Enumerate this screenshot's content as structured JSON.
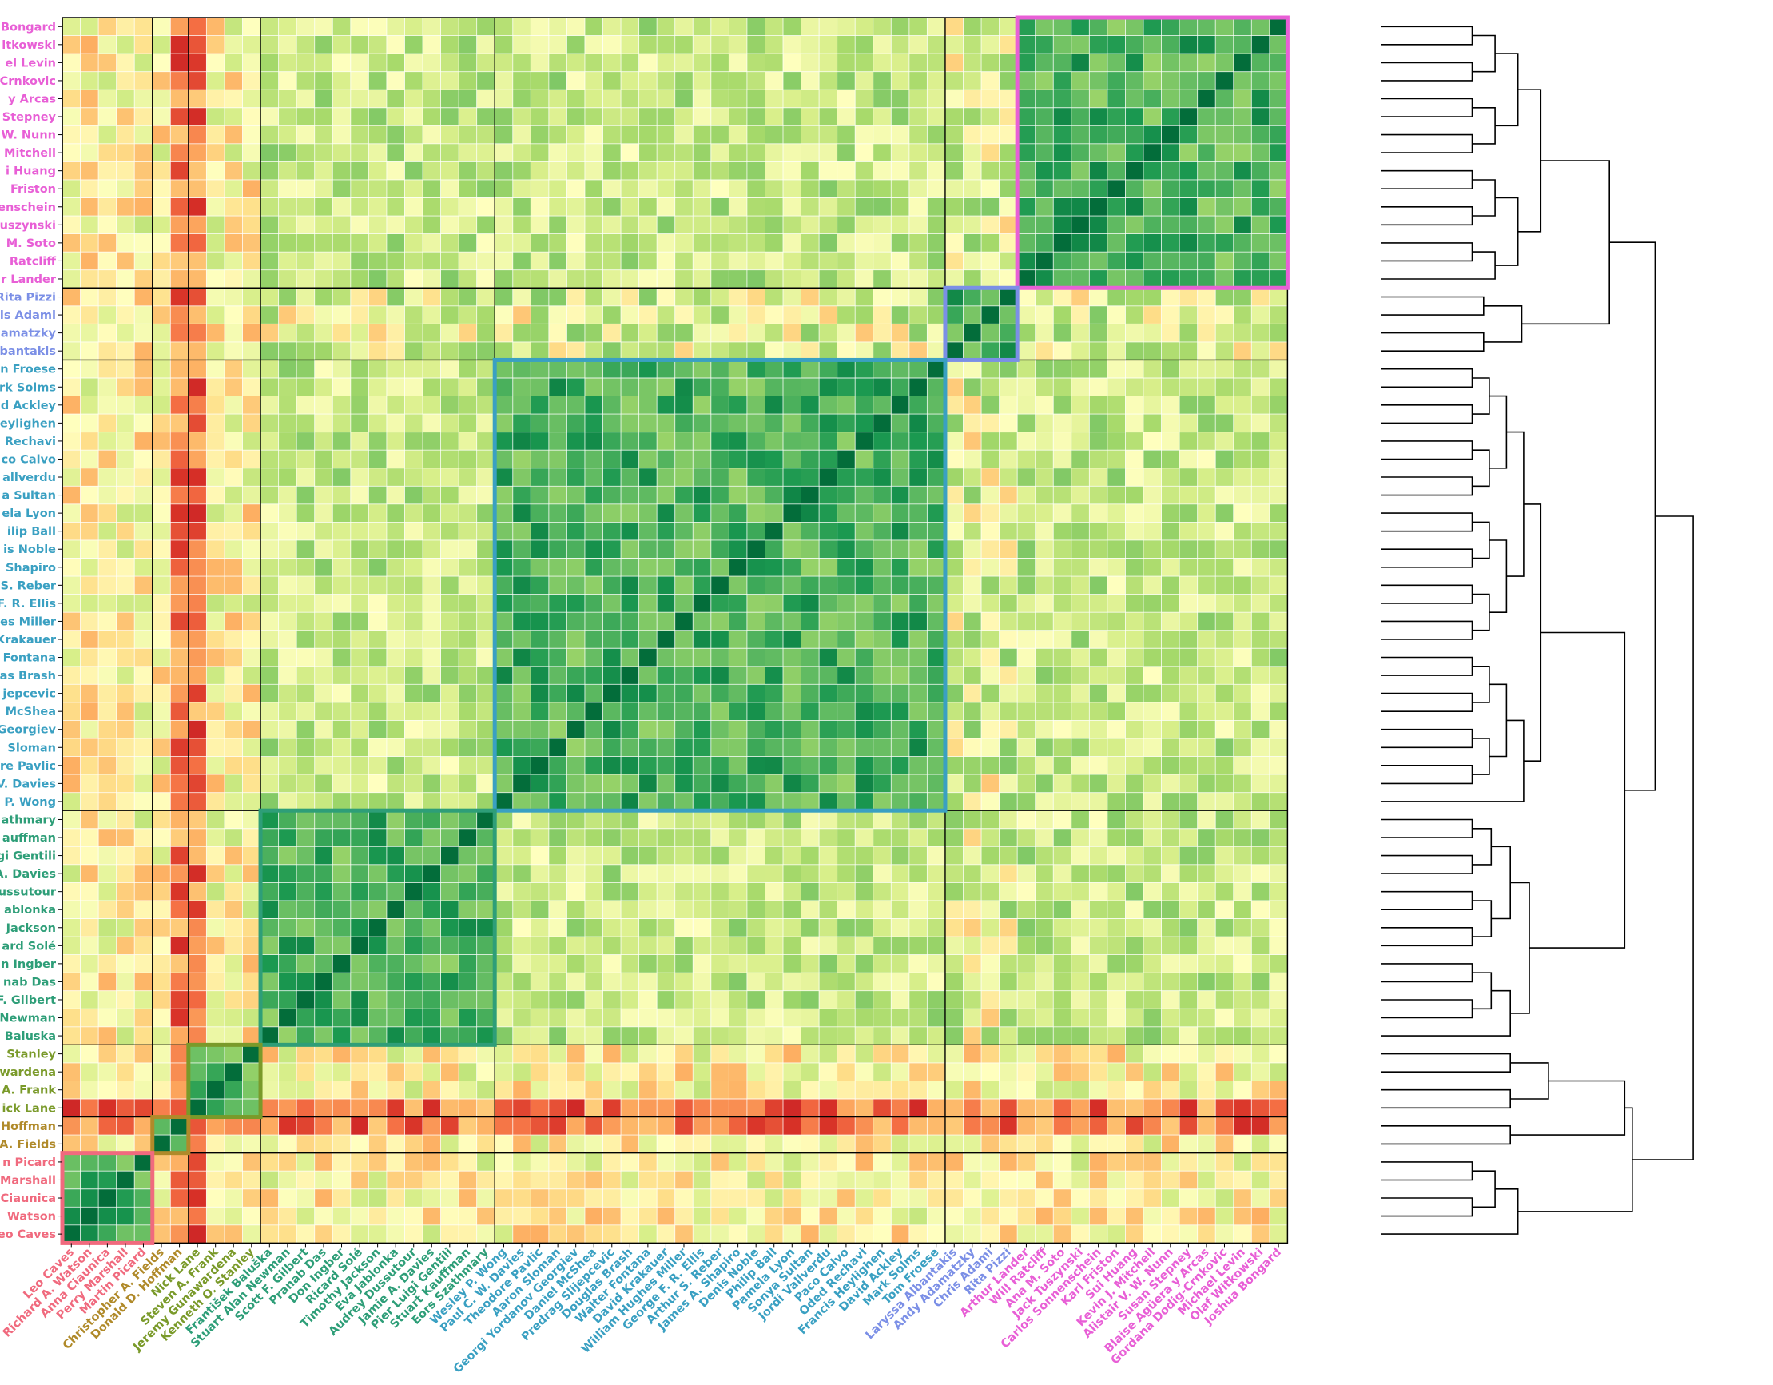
{
  "chart_data": {
    "type": "heatmap",
    "title": "",
    "xlabel": "",
    "ylabel": "",
    "colormap": "RdYlGn",
    "value_range": [
      0,
      1
    ],
    "grid": true,
    "dendrogram": "right",
    "names": [
      "Joshua Bongard",
      "Olaf Witkowski",
      "Michael Levin",
      "Gordana Dodig-Crnkovic",
      "Blaise Agüera y Arcas",
      "Susan Stepney",
      "Alistair V. W. Nunn",
      "Kevin J. Mitchell",
      "Sui Huang",
      "Karl Friston",
      "Carlos Sonnenschein",
      "Jack Tuszynski",
      "Ana M. Soto",
      "Will Ratcliff",
      "Arthur Lander",
      "Rita Pizzi",
      "Chris Adami",
      "Andy Adamatzky",
      "Laryssa Albantakis",
      "Tom Froese",
      "Mark Solms",
      "David Ackley",
      "Francis Heylighen",
      "Oded Rechavi",
      "Paco Calvo",
      "Jordi Vallverdu",
      "Sonya Sultan",
      "Pamela Lyon",
      "Philip Ball",
      "Denis Noble",
      "James A. Shapiro",
      "Arthur S. Reber",
      "George F. R. Ellis",
      "William Hughes Miller",
      "David Krakauer",
      "Walter Fontana",
      "Douglas Brash",
      "Predrag Slijepcevic",
      "Daniel McShea",
      "Georgi Yordanov Georgiev",
      "Aaron Sloman",
      "Theodore Pavlic",
      "Paul C. W. Davies",
      "Wesley P. Wong",
      "Eors Szathmary",
      "Stuart Kauffman",
      "Pier Luigi Gentili",
      "Jamie A. Davies",
      "Audrey Dussutour",
      "Eva Jablonka",
      "Timothy Jackson",
      "Ricard Solé",
      "Don Ingber",
      "Pranab Das",
      "Scott F. Gilbert",
      "Stuart Alan Newman",
      "František Baluška",
      "Kenneth O. Stanley",
      "Jeremy Gunawardena",
      "Steven A. Frank",
      "Nick Lane",
      "Donald D. Hoffman",
      "Christopher A. Fields",
      "Martin Picard",
      "Perry Marshall",
      "Anna Ciaunica",
      "Richard A. Watson",
      "Leo Caves"
    ],
    "row_labels_visible": [
      "Bongard",
      "itkowski",
      "el Levin",
      "Crnkovic",
      "y Arcas",
      "Stepney",
      "W. Nunn",
      "Mitchell",
      "i Huang",
      "Friston",
      "enschein",
      "uszynski",
      "M. Soto",
      "Ratcliff",
      "r Lander",
      "Rita Pizzi",
      "is Adami",
      "amatzky",
      "bantakis",
      "n Froese",
      "rk Solms",
      "d Ackley",
      "eylighen",
      "Rechavi",
      "co Calvo",
      "allverdu",
      "a Sultan",
      "ela Lyon",
      "ilip Ball",
      "is Noble",
      "Shapiro",
      "S. Reber",
      "F. R. Ellis",
      "es Miller",
      "Krakauer",
      "Fontana",
      "as Brash",
      "jepcevic",
      "McShea",
      "Georgiev",
      "Sloman",
      "re Pavlic",
      "V. Davies",
      "P. Wong",
      "athmary",
      "auffman",
      "gi Gentili",
      "A. Davies",
      "ussutour",
      "ablonka",
      "Jackson",
      "ard Solé",
      "n Ingber",
      "nab Das",
      "F. Gilbert",
      "Newman",
      "Baluska",
      "Stanley",
      "wardena",
      "A. Frank",
      "ick Lane",
      "Hoffman",
      "A. Fields",
      "n Picard",
      "Marshall",
      "Ciaunica",
      "Watson",
      "eo Caves"
    ],
    "row_order": [
      0,
      1,
      2,
      3,
      4,
      5,
      6,
      7,
      8,
      9,
      10,
      11,
      12,
      13,
      14,
      15,
      16,
      17,
      18,
      19,
      20,
      21,
      22,
      23,
      24,
      25,
      26,
      27,
      28,
      29,
      30,
      31,
      32,
      33,
      34,
      35,
      36,
      37,
      38,
      39,
      40,
      41,
      42,
      43,
      44,
      45,
      46,
      47,
      48,
      49,
      50,
      51,
      52,
      53,
      54,
      55,
      56,
      57,
      58,
      59,
      60,
      61,
      62,
      63,
      64,
      65,
      66,
      67
    ],
    "column_labels": [
      "Leo Caves",
      "Richard A. Watson",
      "Anna Ciaunica",
      "Perry Marshall",
      "Martin Picard",
      "Christopher A. Fields",
      "Donald D. Hoffman",
      "Nick Lane",
      "Steven A. Frank",
      "Jeremy Gunawardena",
      "Kenneth O. Stanley",
      "František Baluška",
      "Stuart Alan Newman",
      "Scott F. Gilbert",
      "Pranab Das",
      "Don Ingber",
      "Ricard Solé",
      "Timothy Jackson",
      "Eva Jablonka",
      "Audrey Dussutour",
      "Jamie A. Davies",
      "Pier Luigi Gentili",
      "Stuart Kauffman",
      "Eors Szathmary",
      "Wesley P. Wong",
      "Paul C. W. Davies",
      "Theodore Pavlic",
      "Aaron Sloman",
      "Georgi Yordanov Georgiev",
      "Daniel McShea",
      "Predrag Slijepcevic",
      "Douglas Brash",
      "Walter Fontana",
      "David Krakauer",
      "William Hughes Miller",
      "George F. R. Ellis",
      "Arthur S. Reber",
      "James A. Shapiro",
      "Denis Noble",
      "Philip Ball",
      "Pamela Lyon",
      "Sonya Sultan",
      "Jordi Vallverdu",
      "Paco Calvo",
      "Oded Rechavi",
      "Francis Heylighen",
      "David Ackley",
      "Mark Solms",
      "Tom Froese",
      "Laryssa Albantakis",
      "Andy Adamatzky",
      "Chris Adami",
      "Rita Pizzi",
      "Arthur Lander",
      "Will Ratcliff",
      "Ana M. Soto",
      "Jack Tuszynski",
      "Carlos Sonnenschein",
      "Karl Friston",
      "Sui Huang",
      "Kevin J. Mitchell",
      "Alistair V. W. Nunn",
      "Susan Stepney",
      "Blaise Agüera y Arcas",
      "Gordana Dodig-Crnkovic",
      "Michael Levin",
      "Olaf Witkowski",
      "Joshua Bongard"
    ],
    "column_order": [
      67,
      66,
      65,
      64,
      63,
      62,
      61,
      60,
      59,
      58,
      57,
      56,
      55,
      54,
      53,
      52,
      51,
      50,
      49,
      48,
      47,
      46,
      45,
      44,
      43,
      42,
      41,
      40,
      39,
      38,
      37,
      36,
      35,
      34,
      33,
      32,
      31,
      30,
      29,
      28,
      27,
      26,
      25,
      24,
      23,
      22,
      21,
      20,
      19,
      18,
      17,
      16,
      15,
      14,
      13,
      12,
      11,
      10,
      9,
      8,
      7,
      6,
      5,
      4,
      3,
      2,
      1,
      0
    ],
    "clusters": [
      {
        "range": [
          0,
          14
        ],
        "color": "#e85fd6"
      },
      {
        "range": [
          15,
          18
        ],
        "color": "#7b8fe6"
      },
      {
        "range": [
          19,
          43
        ],
        "color": "#3aa0c2"
      },
      {
        "range": [
          44,
          56
        ],
        "color": "#2e9e78"
      },
      {
        "range": [
          57,
          60
        ],
        "color": "#7a9a2a"
      },
      {
        "range": [
          61,
          62
        ],
        "color": "#b08a2a"
      },
      {
        "range": [
          63,
          67
        ],
        "color": "#f06a7e"
      }
    ],
    "outlier_members": [
      61,
      60
    ]
  }
}
